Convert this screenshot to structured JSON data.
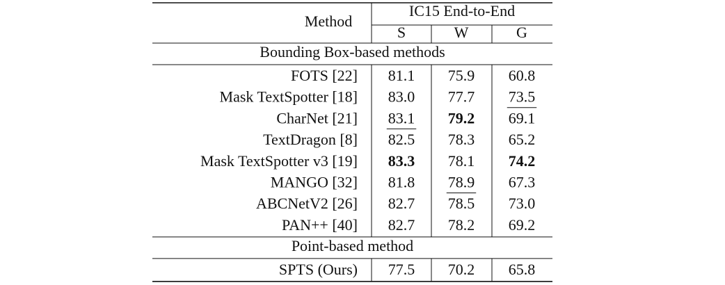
{
  "header": {
    "method": "Method",
    "group": "IC15 End-to-End",
    "columns": [
      "S",
      "W",
      "G"
    ]
  },
  "sections": [
    {
      "title": "Bounding Box-based methods",
      "rows": [
        {
          "method": "FOTS [22]",
          "scores": [
            {
              "text": "81.1"
            },
            {
              "text": "75.9"
            },
            {
              "text": "60.8"
            }
          ]
        },
        {
          "method": "Mask TextSpotter [18]",
          "scores": [
            {
              "text": "83.0"
            },
            {
              "text": "77.7"
            },
            {
              "text": "73.5",
              "style": "underline"
            }
          ]
        },
        {
          "method": "CharNet [21]",
          "scores": [
            {
              "text": "83.1",
              "style": "underline"
            },
            {
              "text": "79.2",
              "style": "bold"
            },
            {
              "text": "69.1"
            }
          ]
        },
        {
          "method": "TextDragon [8]",
          "scores": [
            {
              "text": "82.5"
            },
            {
              "text": "78.3"
            },
            {
              "text": "65.2"
            }
          ]
        },
        {
          "method": "Mask TextSpotter v3 [19]",
          "scores": [
            {
              "text": "83.3",
              "style": "bold"
            },
            {
              "text": "78.1"
            },
            {
              "text": "74.2",
              "style": "bold"
            }
          ]
        },
        {
          "method": "MANGO [32]",
          "scores": [
            {
              "text": "81.8"
            },
            {
              "text": "78.9",
              "style": "underline"
            },
            {
              "text": "67.3"
            }
          ]
        },
        {
          "method": "ABCNetV2 [26]",
          "scores": [
            {
              "text": "82.7"
            },
            {
              "text": "78.5"
            },
            {
              "text": "73.0"
            }
          ]
        },
        {
          "method": "PAN++ [40]",
          "scores": [
            {
              "text": "82.7"
            },
            {
              "text": "78.2"
            },
            {
              "text": "69.2"
            }
          ]
        }
      ]
    },
    {
      "title": "Point-based method",
      "rows": [
        {
          "method": "SPTS (Ours)",
          "scores": [
            {
              "text": "77.5"
            },
            {
              "text": "70.2"
            },
            {
              "text": "65.8"
            }
          ]
        }
      ]
    }
  ]
}
